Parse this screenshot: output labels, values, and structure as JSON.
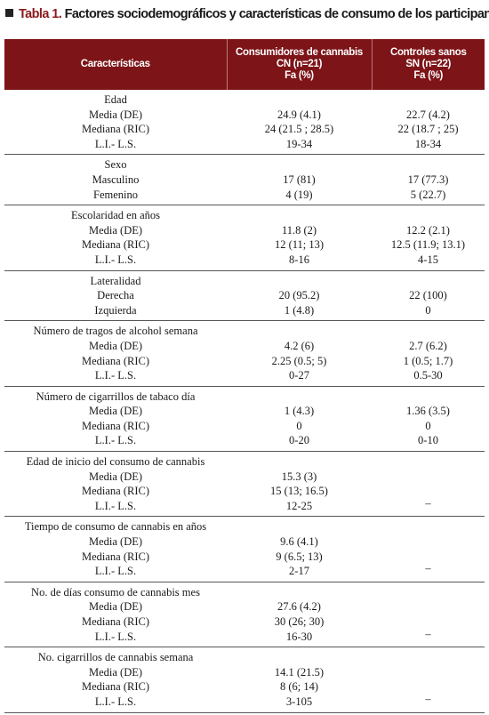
{
  "title": {
    "number": "Tabla 1.",
    "text": "Factores sociodemográficos y características de consumo de los participantes"
  },
  "header": {
    "columns": [
      {
        "lines": [
          "Características"
        ]
      },
      {
        "lines": [
          "Consumidores de cannabis",
          "CN (n=21)",
          "Fa (%)"
        ]
      },
      {
        "lines": [
          "Controles sanos",
          "SN (n=22)",
          "Fa (%)"
        ]
      }
    ]
  },
  "sections": [
    {
      "label": "Edad",
      "rows": [
        {
          "label": "Media (DE)",
          "cn": "24.9 (4.1)",
          "sn": "22.7 (4.2)"
        },
        {
          "label": "Mediana (RIC)",
          "cn": "24 (21.5 ; 28.5)",
          "sn": "22 (18.7 ; 25)"
        },
        {
          "label": "L.I.- L.S.",
          "cn": "19-34",
          "sn": "18-34"
        }
      ]
    },
    {
      "label": "Sexo",
      "rows": [
        {
          "label": "Masculino",
          "cn": "17 (81)",
          "sn": "17 (77.3)"
        },
        {
          "label": "Femenino",
          "cn": "4 (19)",
          "sn": "5 (22.7)"
        }
      ]
    },
    {
      "label": "Escolaridad en años",
      "rows": [
        {
          "label": "Media (DE)",
          "cn": "11.8 (2)",
          "sn": "12.2 (2.1)"
        },
        {
          "label": "Mediana (RIC)",
          "cn": "12 (11; 13)",
          "sn": "12.5 (11.9; 13.1)"
        },
        {
          "label": "L.I.- L.S.",
          "cn": "8-16",
          "sn": "4-15"
        }
      ]
    },
    {
      "label": "Lateralidad",
      "rows": [
        {
          "label": "Derecha",
          "cn": "20 (95.2)",
          "sn": "22 (100)"
        },
        {
          "label": "Izquierda",
          "cn": "1 (4.8)",
          "sn": "0"
        }
      ]
    },
    {
      "label": "Número de tragos de alcohol semana",
      "rows": [
        {
          "label": "Media (DE)",
          "cn": "4.2 (6)",
          "sn": "2.7 (6.2)"
        },
        {
          "label": "Mediana (RIC)",
          "cn": "2.25 (0.5; 5)",
          "sn": "1 (0.5; 1.7)"
        },
        {
          "label": "L.I.- L.S.",
          "cn": "0-27",
          "sn": "0.5-30"
        }
      ]
    },
    {
      "label": "Número de cigarrillos de tabaco día",
      "rows": [
        {
          "label": "Media (DE)",
          "cn": "1 (4.3)",
          "sn": "1.36 (3.5)"
        },
        {
          "label": "Mediana (RIC)",
          "cn": "0",
          "sn": "0"
        },
        {
          "label": "L.I.- L.S.",
          "cn": "0-20",
          "sn": "0-10"
        }
      ]
    },
    {
      "label": "Edad de inicio del consumo de cannabis",
      "sn": "–",
      "rows": [
        {
          "label": "Media (DE)",
          "cn": "15.3 (3)"
        },
        {
          "label": "Mediana (RIC)",
          "cn": "15 (13; 16.5)"
        },
        {
          "label": "L.I.- L.S.",
          "cn": "12-25"
        }
      ]
    },
    {
      "label": "Tiempo de consumo de cannabis en años",
      "sn": "–",
      "rows": [
        {
          "label": "Media (DE)",
          "cn": "9.6 (4.1)"
        },
        {
          "label": "Mediana (RIC)",
          "cn": "9 (6.5; 13)"
        },
        {
          "label": "L.I.- L.S.",
          "cn": "2-17"
        }
      ]
    },
    {
      "label": "No. de días consumo de cannabis mes",
      "sn": "–",
      "rows": [
        {
          "label": "Media (DE)",
          "cn": "27.6 (4.2)"
        },
        {
          "label": "Mediana (RIC)",
          "cn": "30 (26; 30)"
        },
        {
          "label": "L.I.- L.S.",
          "cn": "16-30"
        }
      ]
    },
    {
      "label": "No. cigarrillos de cannabis semana",
      "sn": "–",
      "rows": [
        {
          "label": "Media (DE)",
          "cn": "14.1 (21.5)"
        },
        {
          "label": "Mediana (RIC)",
          "cn": "8 (6; 14)"
        },
        {
          "label": "L.I.- L.S.",
          "cn": "3-105"
        }
      ]
    }
  ]
}
